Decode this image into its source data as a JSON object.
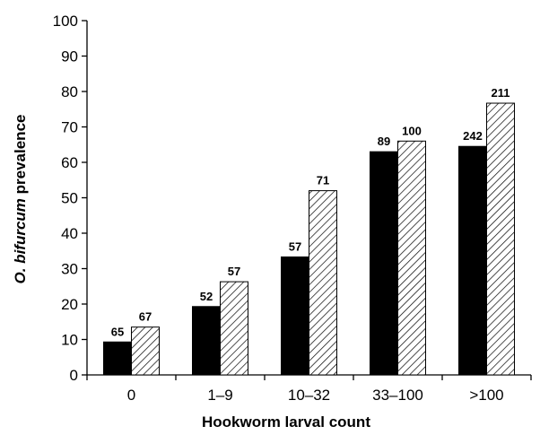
{
  "chart_data": {
    "type": "bar",
    "title": "",
    "xlabel": "Hookworm larval count",
    "ylabel": {
      "italic": "O. bifurcum",
      "rest": " prevalence"
    },
    "ylim": [
      0,
      100
    ],
    "yticks": [
      0,
      10,
      20,
      30,
      40,
      50,
      60,
      70,
      80,
      90,
      100
    ],
    "categories": [
      "0",
      "1–9",
      "10–32",
      "33–100",
      ">100"
    ],
    "series": [
      {
        "fill": "solid",
        "color": "#000000",
        "values": [
          9.3,
          19.3,
          33.3,
          63.0,
          64.5
        ],
        "labels": [
          "65",
          "52",
          "57",
          "89",
          "242"
        ]
      },
      {
        "fill": "hatched",
        "color": "#000000",
        "values": [
          13.5,
          26.3,
          52.0,
          66.0,
          76.7
        ],
        "labels": [
          "67",
          "57",
          "71",
          "100",
          "211"
        ]
      }
    ],
    "grid": false,
    "legend": "none"
  }
}
